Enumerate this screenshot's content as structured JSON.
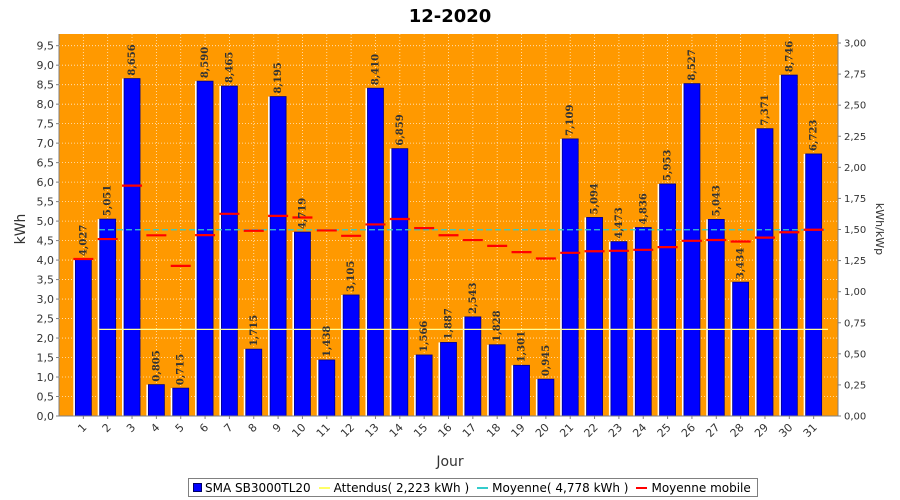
{
  "chart_data": {
    "type": "bar",
    "title": "12-2020",
    "xlabel": "Jour",
    "ylabel": "kWh",
    "y2label": "kWh/kWp",
    "ylim": [
      0,
      9.8
    ],
    "y2lim": [
      0,
      3.0
    ],
    "yticks": [
      "0,0",
      "0,5",
      "1,0",
      "1,5",
      "2,0",
      "2,5",
      "3,0",
      "3,5",
      "4,0",
      "4,5",
      "5,0",
      "5,5",
      "6,0",
      "6,5",
      "7,0",
      "7,5",
      "8,0",
      "8,5",
      "9,0",
      "9,5"
    ],
    "y2ticks": [
      "0,00",
      "0,25",
      "0,50",
      "0,75",
      "1,00",
      "1,25",
      "1,50",
      "1,75",
      "2,00",
      "2,25",
      "2,50",
      "2,75",
      "3,00"
    ],
    "categories": [
      "1",
      "2",
      "3",
      "4",
      "5",
      "6",
      "7",
      "8",
      "9",
      "10",
      "11",
      "12",
      "13",
      "14",
      "15",
      "16",
      "17",
      "18",
      "19",
      "20",
      "21",
      "22",
      "23",
      "24",
      "25",
      "26",
      "27",
      "28",
      "29",
      "30",
      "31"
    ],
    "series": [
      {
        "name": "SMA SB3000TL20",
        "values": [
          4.027,
          5.051,
          8.656,
          0.805,
          0.715,
          8.59,
          8.465,
          1.715,
          8.195,
          4.719,
          1.438,
          3.105,
          8.41,
          6.859,
          1.566,
          1.887,
          2.543,
          1.828,
          1.301,
          0.945,
          7.109,
          5.094,
          4.473,
          4.836,
          5.953,
          8.527,
          5.043,
          3.434,
          7.371,
          8.746,
          6.723
        ],
        "labels": [
          "4,027",
          "5,051",
          "8,656",
          "0,805",
          "0,715",
          "8,590",
          "8,465",
          "1,715",
          "8,195",
          "4,719",
          "1,438",
          "3,105",
          "8,410",
          "6,859",
          "1,566",
          "1,887",
          "2,543",
          "1,828",
          "1,301",
          "0,945",
          "7,109",
          "5,094",
          "4,473",
          "4,836",
          "5,953",
          "8,527",
          "5,043",
          "3,434",
          "7,371",
          "8,746",
          "6,723"
        ],
        "color": "#0000ff"
      },
      {
        "name": "Attendus( 2,223 kWh )",
        "value": 2.223,
        "color": "#ffff66"
      },
      {
        "name": "Moyenne( 4,778 kWh )",
        "value": 4.778,
        "color": "#33cccc"
      },
      {
        "name": "Moyenne mobile",
        "values": [
          4.027,
          4.539,
          5.911,
          4.635,
          3.851,
          4.641,
          5.187,
          4.753,
          5.135,
          5.093,
          4.761,
          4.623,
          4.914,
          5.053,
          4.82,
          4.637,
          4.514,
          4.365,
          4.204,
          4.041,
          4.187,
          4.227,
          4.238,
          4.263,
          4.333,
          4.494,
          4.515,
          4.477,
          4.576,
          4.714,
          4.778
        ],
        "color": "#ff0000"
      }
    ],
    "plot_background": "#ff9900",
    "grid": true,
    "legend_position": "bottom"
  }
}
